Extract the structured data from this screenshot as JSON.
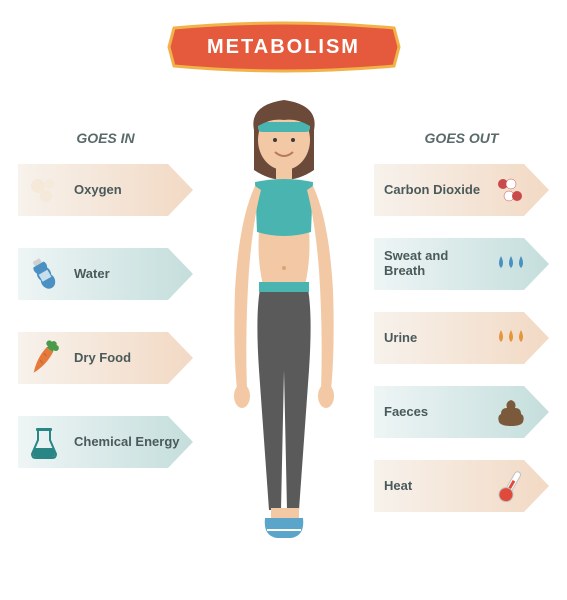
{
  "type": "infographic",
  "title": "METABOLISM",
  "background_color": "#ffffff",
  "banner": {
    "fill": "#e55a3c",
    "stroke": "#f2b24a",
    "text_color": "#ffffff",
    "title_fontsize": 20
  },
  "figure": {
    "skin": "#f2c9a4",
    "hair": "#6b4a3a",
    "headband": "#4ab5b0",
    "top": "#4ab5b0",
    "pants": "#5a5a5a",
    "shoes": "#5aa5c9"
  },
  "columns": {
    "left": {
      "header": "GOES IN",
      "header_color": "#5a6a6a",
      "arrow_direction": "right",
      "items": [
        {
          "label": "Oxygen",
          "icon": "oxygen-icon",
          "bg_start": "#f7f2ec",
          "bg_end": "#f2d9c4",
          "icon_color": "#f5e8d8"
        },
        {
          "label": "Water",
          "icon": "water-bottle-icon",
          "bg_start": "#eef5f5",
          "bg_end": "#c4dedc",
          "icon_color": "#4a90c2"
        },
        {
          "label": "Dry Food",
          "icon": "carrot-icon",
          "bg_start": "#f7f2ec",
          "bg_end": "#f2d9c4",
          "icon_color": "#e57a3c"
        },
        {
          "label": "Chemical Energy",
          "icon": "beaker-icon",
          "bg_start": "#eef5f5",
          "bg_end": "#c4dedc",
          "icon_color": "#2a8585"
        }
      ]
    },
    "right": {
      "header": "GOES OUT",
      "header_color": "#5a6a6a",
      "arrow_direction": "right",
      "items": [
        {
          "label": "Carbon Dioxide",
          "icon": "co2-icon",
          "bg_start": "#f7f2ec",
          "bg_end": "#f2d9c4",
          "icon_color": "#c94a4a"
        },
        {
          "label": "Sweat and Breath",
          "icon": "droplets-icon",
          "bg_start": "#eef5f5",
          "bg_end": "#c4dedc",
          "icon_color": "#4a90c2"
        },
        {
          "label": "Urine",
          "icon": "droplets-icon",
          "bg_start": "#f7f2ec",
          "bg_end": "#f2d9c4",
          "icon_color": "#e5953c"
        },
        {
          "label": "Faeces",
          "icon": "faeces-icon",
          "bg_start": "#eef5f5",
          "bg_end": "#c4dedc",
          "icon_color": "#7a5a3a"
        },
        {
          "label": "Heat",
          "icon": "thermometer-icon",
          "bg_start": "#f7f2ec",
          "bg_end": "#f2d9c4",
          "icon_color": "#e04a3a"
        }
      ]
    }
  },
  "label_fontsize": 13,
  "label_color": "#4a5a5a",
  "header_fontsize": 14
}
